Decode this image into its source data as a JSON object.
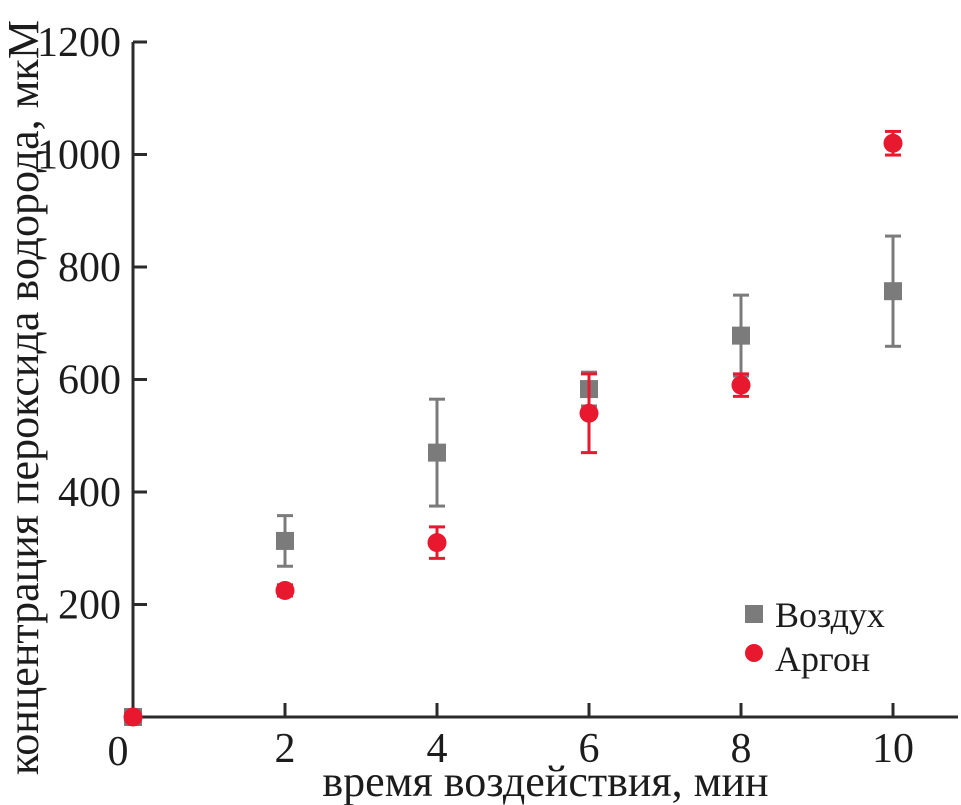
{
  "figure": {
    "background": "#ffffff",
    "axis_color": "#2b2b2b",
    "text_color": "#1c1c1c"
  },
  "chart_data": {
    "type": "scatter",
    "title": "",
    "xlabel": "время воздействия, мин",
    "ylabel": "концентрация пероксида водорода, мкМ",
    "xlim": [
      0,
      10.9
    ],
    "ylim": [
      0,
      1200
    ],
    "xticks": [
      0,
      2,
      4,
      6,
      8,
      10
    ],
    "yticks": [
      200,
      400,
      600,
      800,
      1000,
      1200
    ],
    "grid": false,
    "legend_position": "lower right",
    "x": [
      0,
      2,
      4,
      6,
      8,
      10
    ],
    "series": [
      {
        "name": "Воздух",
        "marker": "square",
        "color": "#7b7b7b",
        "values": [
          0,
          313,
          470,
          583,
          678,
          757
        ],
        "errors": [
          0,
          45,
          95,
          30,
          72,
          98
        ]
      },
      {
        "name": "Аргон",
        "marker": "circle",
        "color": "#e8192e",
        "values": [
          0,
          225,
          310,
          540,
          590,
          1020
        ],
        "errors": [
          0,
          10,
          28,
          70,
          20,
          21
        ]
      }
    ]
  },
  "legend": {
    "items": [
      {
        "label": "Воздух",
        "marker": "square",
        "color": "#7b7b7b"
      },
      {
        "label": "Аргон",
        "marker": "circle",
        "color": "#e8192e"
      }
    ]
  }
}
